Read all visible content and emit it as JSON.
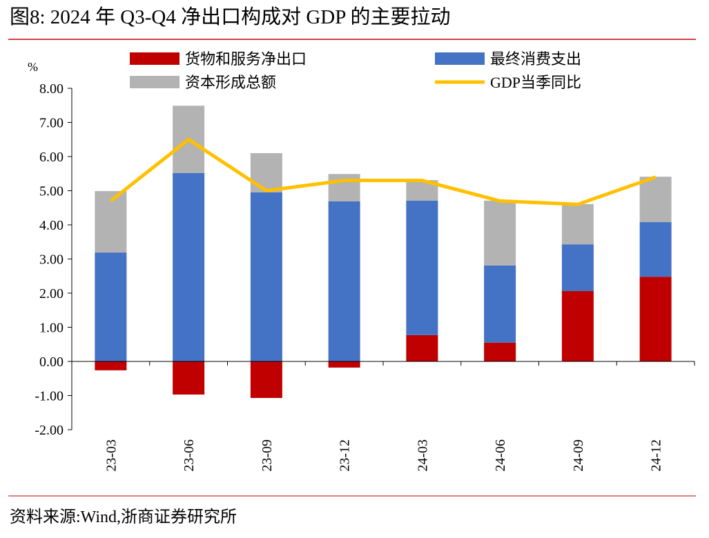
{
  "title": "图8:   2024 年 Q3-Q4 净出口构成对 GDP 的主要拉动",
  "source": "资料来源:Wind,浙商证券研究所",
  "colors": {
    "title": "#c00000",
    "net_export": "#c00000",
    "consumption": "#4472c4",
    "capital": "#b3b3b3",
    "gdp": "#ffc000"
  },
  "chart_data": {
    "type": "bar",
    "stacked": true,
    "ylabel": "%",
    "ylim": [
      -2,
      8
    ],
    "yticks": [
      "8.00",
      "7.00",
      "6.00",
      "5.00",
      "4.00",
      "3.00",
      "2.00",
      "1.00",
      "0.00",
      "-1.00",
      "-2.00"
    ],
    "categories": [
      "23-03",
      "23-06",
      "23-09",
      "23-12",
      "24-03",
      "24-06",
      "24-09",
      "24-12"
    ],
    "legend_placement": "top",
    "series": [
      {
        "name": "货物和服务净出口",
        "type": "bar",
        "values": [
          -0.26,
          -0.97,
          -1.07,
          -0.18,
          0.77,
          0.55,
          2.06,
          2.48
        ]
      },
      {
        "name": "最终消费支出",
        "type": "bar",
        "values": [
          3.19,
          5.52,
          4.95,
          4.69,
          3.94,
          2.26,
          1.37,
          1.6
        ]
      },
      {
        "name": "资本形成总额",
        "type": "bar",
        "values": [
          1.8,
          1.97,
          1.15,
          0.8,
          0.6,
          1.9,
          1.18,
          1.33
        ]
      },
      {
        "name": "GDP当季同比",
        "type": "line",
        "values": [
          4.7,
          6.5,
          5.0,
          5.3,
          5.3,
          4.7,
          4.6,
          5.4
        ]
      }
    ]
  }
}
